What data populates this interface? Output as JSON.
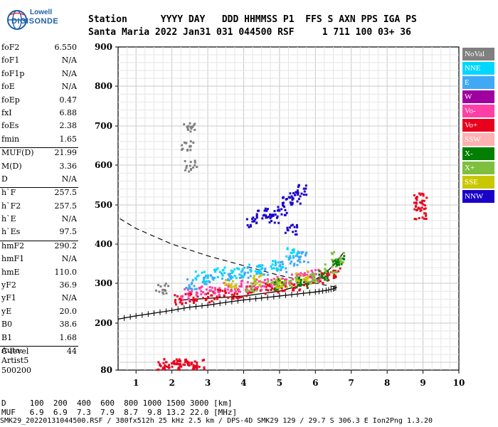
{
  "logo": {
    "line1": "Lowell",
    "line2": "DIGISONDE"
  },
  "header": {
    "row1": "Station      YYYY DAY   DDD HHMMSS P1  FFS S AXN PPS IGA PS",
    "row2": "Santa Maria 2022 Jan31 031 044500 RSF     1 711 100 03+ 36"
  },
  "params": [
    {
      "label": "foF2",
      "value": "6.550"
    },
    {
      "label": "foF1",
      "value": "N/A"
    },
    {
      "label": "foF1p",
      "value": "N/A"
    },
    {
      "label": "foE",
      "value": "N/A"
    },
    {
      "label": "foEp",
      "value": "0.47"
    },
    {
      "label": "fxI",
      "value": "6.88"
    },
    {
      "label": "foEs",
      "value": "2.38"
    },
    {
      "label": "fmin",
      "value": "1.65"
    },
    {
      "label": "MUF(D)",
      "value": "21.99",
      "sep": true
    },
    {
      "label": "M(D)",
      "value": "3.36"
    },
    {
      "label": "D",
      "value": "N/A"
    },
    {
      "label": "h`F",
      "value": "257.5",
      "sep": true
    },
    {
      "label": "h`F2",
      "value": "257.5"
    },
    {
      "label": "h`E",
      "value": "N/A"
    },
    {
      "label": "h`Es",
      "value": "97.5"
    },
    {
      "label": "hmF2",
      "value": "290.2",
      "sep": true
    },
    {
      "label": "hmF1",
      "value": "N/A"
    },
    {
      "label": "hmE",
      "value": "110.0"
    },
    {
      "label": "yF2",
      "value": "36.9"
    },
    {
      "label": "yF1",
      "value": "N/A"
    },
    {
      "label": "yE",
      "value": "20.0"
    },
    {
      "label": "B0",
      "value": "38.6"
    },
    {
      "label": "B1",
      "value": "1.68"
    },
    {
      "label": "C-level",
      "value": "44",
      "sep": true
    }
  ],
  "auto": {
    "line1": "Auto:",
    "line2": "Artist5",
    "line3": "500200"
  },
  "legend": [
    {
      "label": "NoVal",
      "color": "#808080"
    },
    {
      "label": "NNE",
      "color": "#00d7ff"
    },
    {
      "label": "E",
      "color": "#3fa9f5"
    },
    {
      "label": "W",
      "color": "#a0009f"
    },
    {
      "label": "Vo-",
      "color": "#ff3fa6"
    },
    {
      "label": "Vo+",
      "color": "#e8001c"
    },
    {
      "label": "SSW",
      "color": "#ffb0b0"
    },
    {
      "label": "X-",
      "color": "#007f00"
    },
    {
      "label": "X+",
      "color": "#7fbf3f"
    },
    {
      "label": "SSE",
      "color": "#c8c800"
    },
    {
      "label": "NNW",
      "color": "#1a00c8"
    }
  ],
  "footer": {
    "line1": "D     100  200  400  600  800 1000 1500 3000 [km]",
    "line2": "MUF   6.9  6.9  7.3  7.9  8.7  9.8 13.2 22.0 [MHz]",
    "file": "SMK29_20220131044500.RSF / 380fx512h 25 kHz 2.5 km / DPS-4D SMK29 129 / 29.7 S 306.3 E Ion2Png 1.3.20"
  },
  "chart_data": {
    "type": "scatter",
    "xlim": [
      0.5,
      10.0
    ],
    "ylim": [
      80,
      900
    ],
    "x_ticks": [
      1,
      2,
      3,
      4,
      5,
      6,
      7,
      8,
      9,
      10
    ],
    "y_ticks": [
      80,
      200,
      300,
      400,
      500,
      600,
      700,
      800,
      900
    ],
    "grid": true,
    "echo_clusters": [
      {
        "name": "F-trace O main",
        "color": "#e8001c",
        "x": [
          2.2,
          2.6,
          3.0,
          3.4,
          3.8,
          4.2,
          4.6,
          5.0,
          5.4,
          5.8,
          6.2,
          6.5
        ],
        "y": [
          262,
          265,
          268,
          273,
          278,
          283,
          288,
          293,
          298,
          306,
          315,
          330
        ]
      },
      {
        "name": "F-trace O scatter",
        "color": "#ff3fa6",
        "x": [
          2.4,
          2.8,
          3.2,
          3.6,
          4.0,
          4.4,
          4.8,
          5.2,
          5.6,
          6.0
        ],
        "y": [
          275,
          282,
          285,
          290,
          295,
          300,
          305,
          312,
          318,
          325
        ]
      },
      {
        "name": "F-trace E",
        "color": "#3fa9f5",
        "x": [
          2.5,
          3.0,
          3.5,
          4.0,
          4.5,
          5.0,
          5.4,
          5.6
        ],
        "y": [
          300,
          310,
          320,
          330,
          335,
          345,
          360,
          370
        ]
      },
      {
        "name": "F-trace NNE",
        "color": "#00d7ff",
        "x": [
          2.8,
          3.3,
          3.8,
          4.3,
          4.9,
          5.3
        ],
        "y": [
          320,
          330,
          330,
          340,
          350,
          380
        ]
      },
      {
        "name": "X-trace",
        "color": "#7fbf3f",
        "x": [
          4.2,
          4.8,
          5.4,
          6.0,
          6.4,
          6.6
        ],
        "y": [
          295,
          300,
          305,
          315,
          340,
          370
        ]
      },
      {
        "name": "X-trace dark",
        "color": "#007f00",
        "x": [
          5.0,
          5.6,
          6.2,
          6.6
        ],
        "y": [
          300,
          305,
          320,
          360
        ]
      },
      {
        "name": "SSE",
        "color": "#c8c800",
        "x": [
          3.6,
          4.4,
          5.0,
          5.6
        ],
        "y": [
          300,
          310,
          305,
          320
        ]
      },
      {
        "name": "NNW spread",
        "color": "#1a00c8",
        "x": [
          4.2,
          4.5,
          4.8,
          5.0,
          5.2,
          5.4,
          5.6,
          5.3
        ],
        "y": [
          460,
          480,
          470,
          490,
          510,
          520,
          540,
          440
        ]
      },
      {
        "name": "Es low",
        "color": "#e8001c",
        "x": [
          1.7,
          1.9,
          2.1,
          2.3,
          2.5,
          2.7
        ],
        "y": [
          97,
          97,
          97,
          98,
          98,
          99
        ]
      },
      {
        "name": "NoVal",
        "color": "#808080",
        "x": [
          1.7,
          2.4,
          2.45,
          2.5
        ],
        "y": [
          290,
          650,
          700,
          600
        ]
      },
      {
        "name": "Vo+ 2F",
        "color": "#e8001c",
        "x": [
          8.9,
          8.9,
          8.9
        ],
        "y": [
          480,
          500,
          520
        ]
      }
    ],
    "hprofile_x": [
      0.5,
      1.0,
      1.5,
      2.0,
      2.5,
      3.0,
      3.5,
      4.0,
      4.5,
      5.0,
      5.5,
      6.0,
      6.3,
      6.5,
      6.6
    ],
    "hprofile_y": [
      210,
      218,
      225,
      232,
      240,
      245,
      252,
      258,
      263,
      268,
      273,
      278,
      282,
      286,
      290
    ],
    "mid_curve_x": [
      2.3,
      3.0,
      4.0,
      5.0,
      5.8,
      6.2,
      6.5,
      6.8
    ],
    "mid_curve_y": [
      258,
      262,
      268,
      280,
      300,
      320,
      345,
      380
    ],
    "dashed_x": [
      0.55,
      1.0,
      2.0,
      3.0,
      4.0,
      5.0,
      6.0,
      6.6
    ],
    "dashed_y": [
      465,
      440,
      400,
      370,
      345,
      320,
      300,
      290
    ]
  }
}
